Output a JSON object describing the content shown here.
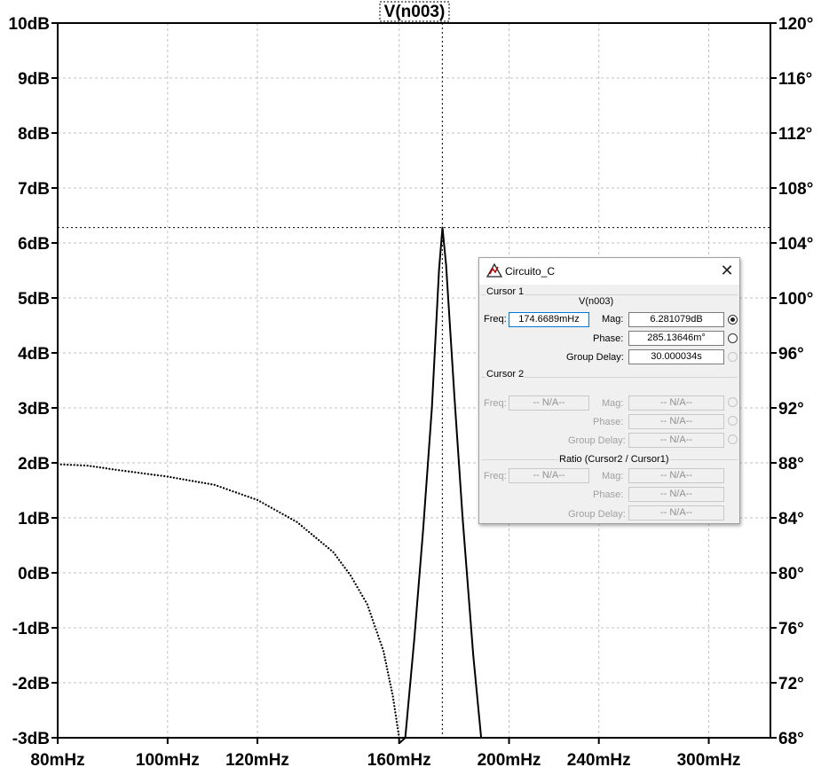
{
  "chart_data": {
    "type": "line",
    "title": "V(n003)",
    "x_scale": "log",
    "x_ticks": [
      "80mHz",
      "100mHz",
      "120mHz",
      "160mHz",
      "200mHz",
      "240mHz",
      "300mHz"
    ],
    "x_tick_values": [
      0.08,
      0.1,
      0.12,
      0.16,
      0.2,
      0.24,
      0.3
    ],
    "xlim": [
      0.08,
      0.34
    ],
    "y_left_ticks": [
      "10dB",
      "9dB",
      "8dB",
      "7dB",
      "6dB",
      "5dB",
      "4dB",
      "3dB",
      "2dB",
      "1dB",
      "0dB",
      "-1dB",
      "-2dB",
      "-3dB"
    ],
    "ylim_left": [
      -3,
      10
    ],
    "y_right_ticks": [
      "120°",
      "116°",
      "112°",
      "108°",
      "104°",
      "100°",
      "96°",
      "92°",
      "88°",
      "84°",
      "80°",
      "76°",
      "72°",
      "68°"
    ],
    "ylim_right": [
      68,
      120
    ],
    "grid": true,
    "series": [
      {
        "style": "solid",
        "axis": "left",
        "x": [
          0.16,
          0.162,
          0.165,
          0.168,
          0.171,
          0.1735,
          0.1747,
          0.176,
          0.179,
          0.182,
          0.186,
          0.189
        ],
        "y": [
          -3.1,
          -3.0,
          -1.2,
          0.8,
          3.0,
          5.5,
          6.28,
          5.6,
          3.2,
          1.0,
          -1.5,
          -3.0
        ]
      },
      {
        "style": "dotted",
        "axis": "right",
        "x": [
          0.08,
          0.085,
          0.09,
          0.1,
          0.11,
          0.12,
          0.13,
          0.14,
          0.145,
          0.15,
          0.155,
          0.158,
          0.16
        ],
        "y": [
          87.9,
          87.8,
          87.5,
          87.0,
          86.4,
          85.3,
          83.7,
          81.5,
          79.8,
          77.7,
          74.3,
          71.0,
          68.0
        ]
      }
    ],
    "cursor": {
      "x": 0.1746689,
      "y": 6.281079
    }
  },
  "dialog": {
    "title": "Circuito_C",
    "close": "✕",
    "cursor1_group": "Cursor 1",
    "cursor1_trace": "V(n003)",
    "cursor2_group": "Cursor 2",
    "ratio_group": "Ratio (Cursor2 / Cursor1)",
    "freq_label": "Freq:",
    "mag_label": "Mag:",
    "phase_label": "Phase:",
    "group_delay_label": "Group Delay:",
    "cursor1": {
      "freq": "174.6689mHz",
      "mag": "6.281079dB",
      "phase": "285.13646m°",
      "group_delay": "30.000034s",
      "selected_radio": "mag"
    },
    "cursor2": {
      "freq": "-- N/A--",
      "mag": "-- N/A--",
      "phase": "-- N/A--",
      "group_delay": "-- N/A--"
    },
    "ratio": {
      "freq": "-- N/A--",
      "mag": "-- N/A--",
      "phase": "-- N/A--",
      "group_delay": "-- N/A--"
    }
  }
}
